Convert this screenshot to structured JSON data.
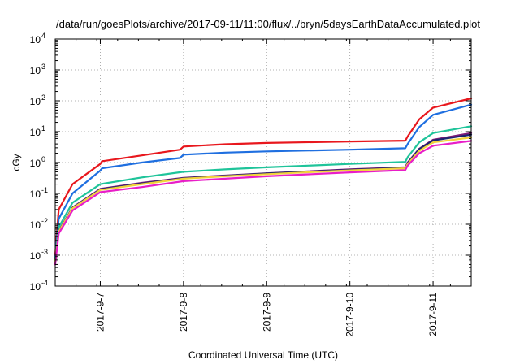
{
  "chart_data": {
    "type": "line",
    "title": "/data/run/goesPlots/archive/2017-09-11/11:00/flux/../bryn/5daysEarthDataAccumulated.plot",
    "xlabel": "Coordinated Universal Time (UTC)",
    "ylabel": "cGy",
    "y_scale": "log",
    "ylim": [
      0.0001,
      10000
    ],
    "xlim": [
      "2017-09-06 11:00",
      "2017-09-11 11:00"
    ],
    "grid": true,
    "legend": "none",
    "x_ticks": [
      "2017-9-7",
      "2017-9-8",
      "2017-9-9",
      "2017-9-10",
      "2017-9-11"
    ],
    "y_ticks": [
      {
        "base": "10",
        "exp": "-4"
      },
      {
        "base": "10",
        "exp": "-3"
      },
      {
        "base": "10",
        "exp": "-2"
      },
      {
        "base": "10",
        "exp": "-1"
      },
      {
        "base": "10",
        "exp": "0"
      },
      {
        "base": "10",
        "exp": "1"
      },
      {
        "base": "10",
        "exp": "2"
      },
      {
        "base": "10",
        "exp": "3"
      },
      {
        "base": "10",
        "exp": "4"
      }
    ],
    "series": [
      {
        "color": "#e8171d",
        "x": [
          "2017-09-06 11:00",
          "2017-09-06 12:00",
          "2017-09-06 16:00",
          "2017-09-07 00:00",
          "2017-09-07 00:30",
          "2017-09-07 12:00",
          "2017-09-07 23:00",
          "2017-09-08 00:00",
          "2017-09-08 12:00",
          "2017-09-09 00:00",
          "2017-09-10 00:00",
          "2017-09-10 16:00",
          "2017-09-10 16:40",
          "2017-09-10 20:00",
          "2017-09-11 00:00",
          "2017-09-11 11:00"
        ],
        "values": [
          0.001,
          0.03,
          0.2,
          0.9,
          1.1,
          1.7,
          2.6,
          3.3,
          3.9,
          4.3,
          4.8,
          5.1,
          7,
          25,
          60,
          120
        ]
      },
      {
        "color": "#1f6fe0",
        "x": [
          "2017-09-06 11:00",
          "2017-09-06 12:00",
          "2017-09-06 16:00",
          "2017-09-07 00:00",
          "2017-09-07 00:30",
          "2017-09-07 12:00",
          "2017-09-07 23:00",
          "2017-09-08 00:00",
          "2017-09-08 12:00",
          "2017-09-09 00:00",
          "2017-09-10 00:00",
          "2017-09-10 16:00",
          "2017-09-10 16:40",
          "2017-09-10 20:00",
          "2017-09-11 00:00",
          "2017-09-11 11:00"
        ],
        "values": [
          0.0008,
          0.015,
          0.1,
          0.55,
          0.65,
          1.0,
          1.4,
          1.8,
          2.1,
          2.3,
          2.6,
          2.9,
          4,
          14,
          35,
          75
        ]
      },
      {
        "color": "#1fc49a",
        "x": [
          "2017-09-06 11:00",
          "2017-09-06 12:00",
          "2017-09-06 16:00",
          "2017-09-07 00:00",
          "2017-09-07 12:00",
          "2017-09-08 00:00",
          "2017-09-08 12:00",
          "2017-09-09 00:00",
          "2017-09-10 00:00",
          "2017-09-10 16:00",
          "2017-09-10 16:40",
          "2017-09-10 20:00",
          "2017-09-11 00:00",
          "2017-09-11 11:00"
        ],
        "values": [
          0.0007,
          0.008,
          0.05,
          0.2,
          0.33,
          0.5,
          0.6,
          0.7,
          0.9,
          1.05,
          1.5,
          4.5,
          9,
          15
        ]
      },
      {
        "color": "#7d1a78",
        "x": [
          "2017-09-06 11:00",
          "2017-09-06 12:00",
          "2017-09-06 16:00",
          "2017-09-07 00:00",
          "2017-09-07 12:00",
          "2017-09-08 00:00",
          "2017-09-08 12:00",
          "2017-09-09 00:00",
          "2017-09-10 00:00",
          "2017-09-10 16:00",
          "2017-09-10 16:40",
          "2017-09-10 20:00",
          "2017-09-11 00:00",
          "2017-09-11 11:00"
        ],
        "values": [
          0.0006,
          0.006,
          0.035,
          0.14,
          0.22,
          0.32,
          0.38,
          0.45,
          0.6,
          0.7,
          1.0,
          2.8,
          5.5,
          9
        ]
      },
      {
        "color": "#1a2470",
        "x": [
          "2017-09-06 11:00",
          "2017-09-06 12:00",
          "2017-09-06 16:00",
          "2017-09-07 00:00",
          "2017-09-07 12:00",
          "2017-09-08 00:00",
          "2017-09-08 12:00",
          "2017-09-09 00:00",
          "2017-09-10 00:00",
          "2017-09-10 16:00",
          "2017-09-10 16:40",
          "2017-09-10 20:00",
          "2017-09-11 00:00",
          "2017-09-11 11:00"
        ],
        "values": [
          0.0006,
          0.006,
          0.034,
          0.135,
          0.21,
          0.31,
          0.37,
          0.44,
          0.58,
          0.68,
          0.95,
          2.7,
          5.2,
          8
        ]
      },
      {
        "color": "#f2d33b",
        "x": [
          "2017-09-06 11:00",
          "2017-09-06 12:00",
          "2017-09-06 16:00",
          "2017-09-07 00:00",
          "2017-09-07 12:00",
          "2017-09-08 00:00",
          "2017-09-08 12:00",
          "2017-09-09 00:00",
          "2017-09-10 00:00",
          "2017-09-10 16:00",
          "2017-09-10 16:40",
          "2017-09-10 20:00",
          "2017-09-11 00:00",
          "2017-09-11 11:00"
        ],
        "values": [
          0.0006,
          0.0058,
          0.033,
          0.13,
          0.2,
          0.3,
          0.36,
          0.42,
          0.56,
          0.65,
          0.9,
          2.4,
          4.5,
          6.5
        ]
      },
      {
        "color": "#e81ec8",
        "x": [
          "2017-09-06 11:00",
          "2017-09-06 12:00",
          "2017-09-06 16:00",
          "2017-09-07 00:00",
          "2017-09-07 12:00",
          "2017-09-08 00:00",
          "2017-09-08 12:00",
          "2017-09-09 00:00",
          "2017-09-10 00:00",
          "2017-09-10 16:00",
          "2017-09-10 16:40",
          "2017-09-10 20:00",
          "2017-09-11 00:00",
          "2017-09-11 11:00"
        ],
        "values": [
          0.0005,
          0.005,
          0.028,
          0.11,
          0.16,
          0.25,
          0.3,
          0.36,
          0.48,
          0.57,
          0.8,
          2.0,
          3.5,
          5
        ]
      }
    ]
  }
}
